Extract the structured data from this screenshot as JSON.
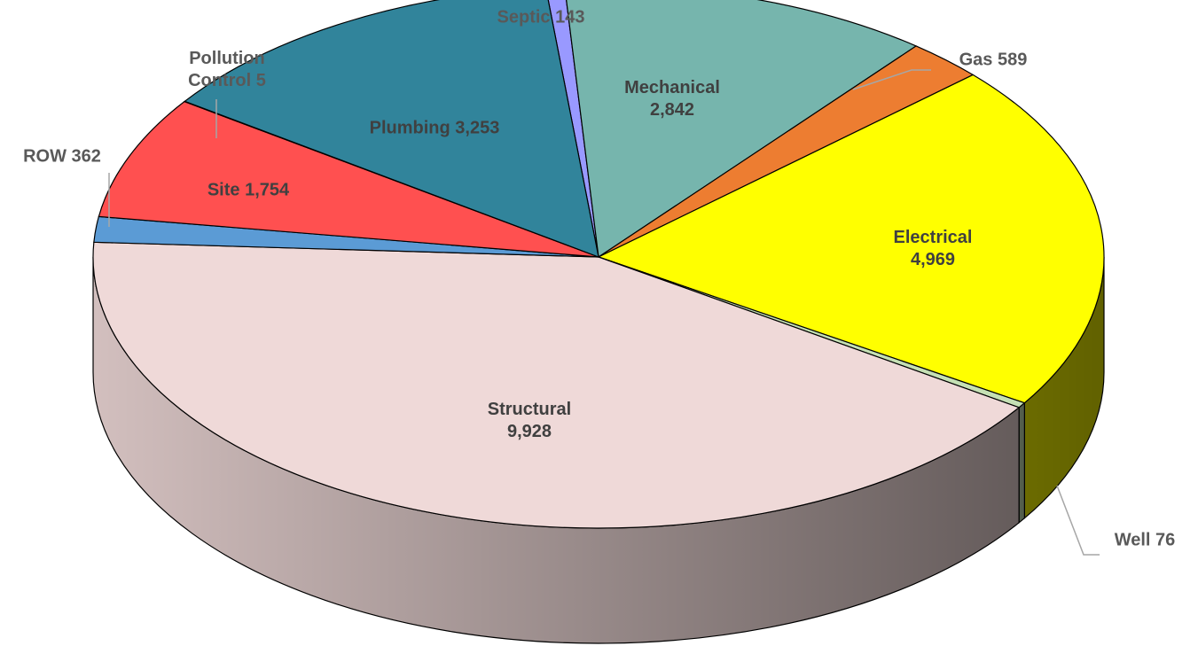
{
  "chart_data": {
    "type": "pie",
    "categories": [
      "Septic",
      "Mechanical",
      "Gas",
      "Electrical",
      "Well",
      "Structural",
      "ROW",
      "Site",
      "Pollution Control",
      "Plumbing"
    ],
    "values": [
      143,
      2842,
      589,
      4969,
      76,
      9928,
      362,
      1754,
      5,
      3253
    ],
    "value_labels": [
      "143",
      "2,842",
      "589",
      "4,969",
      "76",
      "9,928",
      "362",
      "1,754",
      "5",
      "3,253"
    ],
    "colors": [
      "#9999ff",
      "#76b5ad",
      "#ed7d31",
      "#ffff00",
      "#c5e0b4",
      "#efd9d8",
      "#5b9bd5",
      "#ff5050",
      "#7030a0",
      "#31849b"
    ]
  }
}
